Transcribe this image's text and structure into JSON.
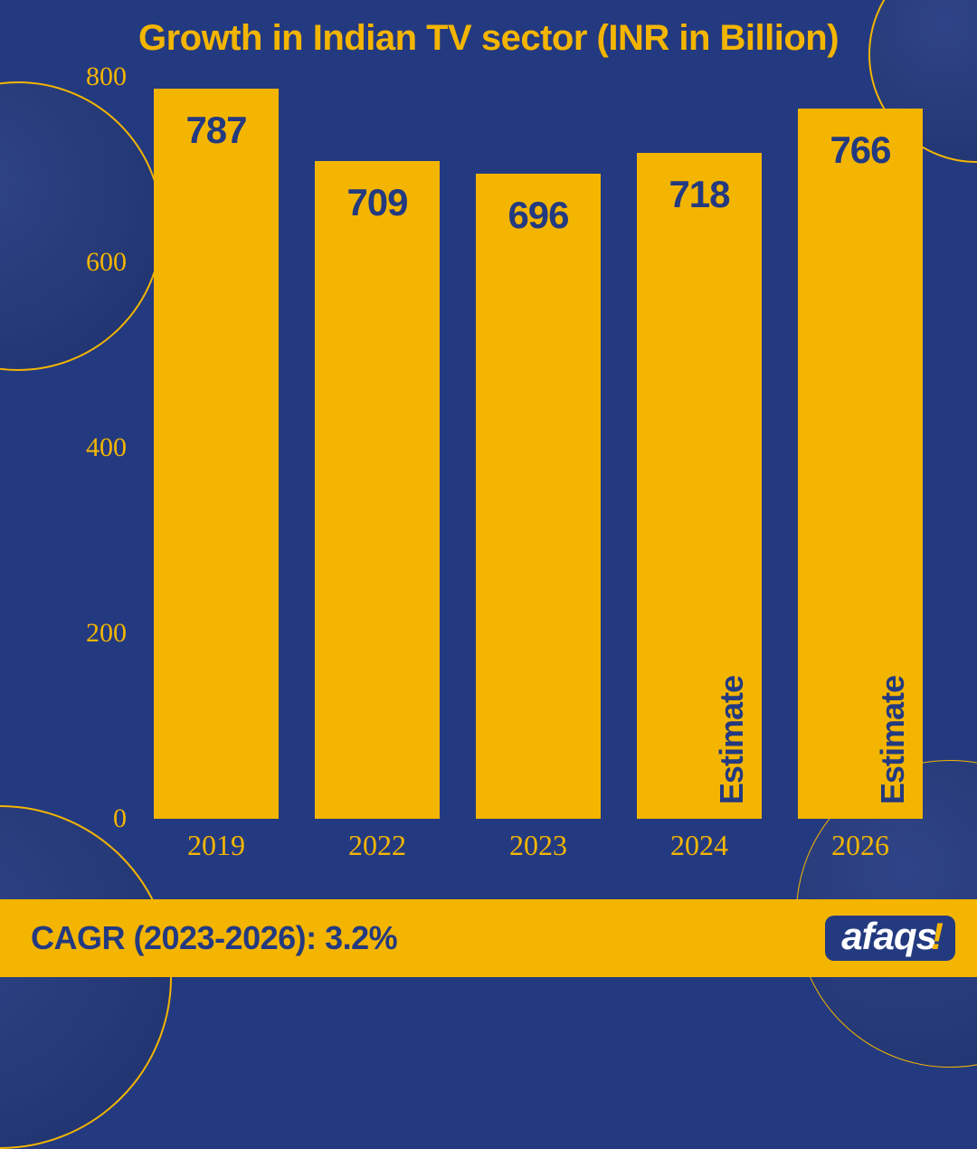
{
  "title": "Growth in Indian TV sector (INR in Billion)",
  "chart": {
    "type": "bar",
    "categories": [
      "2019",
      "2022",
      "2023",
      "2024",
      "2026"
    ],
    "values": [
      787,
      709,
      696,
      718,
      766
    ],
    "estimate_flags": [
      false,
      false,
      false,
      true,
      true
    ],
    "estimate_label": "Estimate",
    "bar_color": "#f4b500",
    "value_color": "#243a80",
    "value_fontsize": 42,
    "category_fontsize": 32,
    "ylim_min": 0,
    "ylim_max": 800,
    "ytick_step": 200,
    "yticks": [
      0,
      200,
      400,
      600,
      800
    ],
    "axis_color": "#f4b500",
    "axis_fontsize": 30,
    "bar_width_ratio": 0.78,
    "background_color": "#243a80",
    "title_color": "#f4b500",
    "title_fontsize": 40
  },
  "footer": {
    "cagr_text": "CAGR (2023-2026): 3.2%",
    "footer_bg": "#f4b500",
    "footer_text_color": "#243a80",
    "logo_text": "afaqs",
    "logo_bang": "!",
    "logo_bg": "#243a80",
    "logo_fg": "#ffffff"
  }
}
